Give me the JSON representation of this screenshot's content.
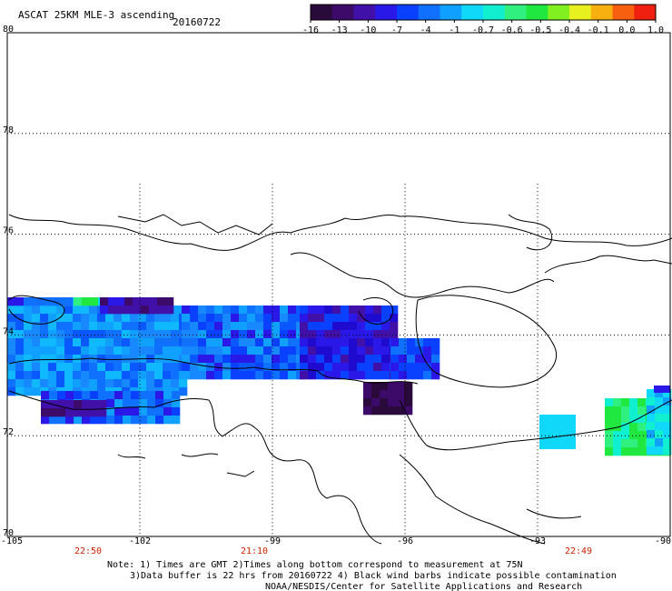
{
  "header": {
    "title": "ASCAT 25KM MLE-3 ascending",
    "date": "20160722"
  },
  "colorbar": {
    "colors": [
      "#2a0a3a",
      "#3c0a68",
      "#4010a8",
      "#2a18e8",
      "#0a40ff",
      "#1070ff",
      "#10a0ff",
      "#10d8f8",
      "#10f0d0",
      "#30f080",
      "#20e840",
      "#80f020",
      "#e8f020",
      "#f8b010",
      "#f86010",
      "#f02010"
    ],
    "labels": [
      "-16",
      "-13",
      "-10",
      "-7",
      "-4",
      "-1",
      "-0.7",
      "-0.6",
      "-0.5",
      "-0.4",
      "-0.1",
      "0.0",
      "1.0"
    ]
  },
  "map": {
    "lat_labels": [
      "80",
      "78",
      "76",
      "74",
      "72",
      "70"
    ],
    "lon_labels": [
      "-105",
      "-102",
      "-99",
      "-96",
      "-93",
      "-90"
    ],
    "time_labels": [
      "22:50",
      "21:10",
      "22:49"
    ],
    "lat_range": [
      70,
      80
    ],
    "lon_range": [
      -105,
      -90
    ],
    "lon_grid": [
      -102,
      -99,
      -96,
      -93
    ],
    "lat_grid": [
      72,
      74,
      76,
      78
    ]
  },
  "footer": {
    "line1": "Note: 1) Times are GMT 2)Times along bottom correspond to measurement at 75N",
    "line2": "3)Data buffer is 22 hrs from 20160722 4) Black wind barbs indicate possible contamination",
    "line3": "NOAA/NESDIS/Center for Satellite Applications and Research"
  }
}
